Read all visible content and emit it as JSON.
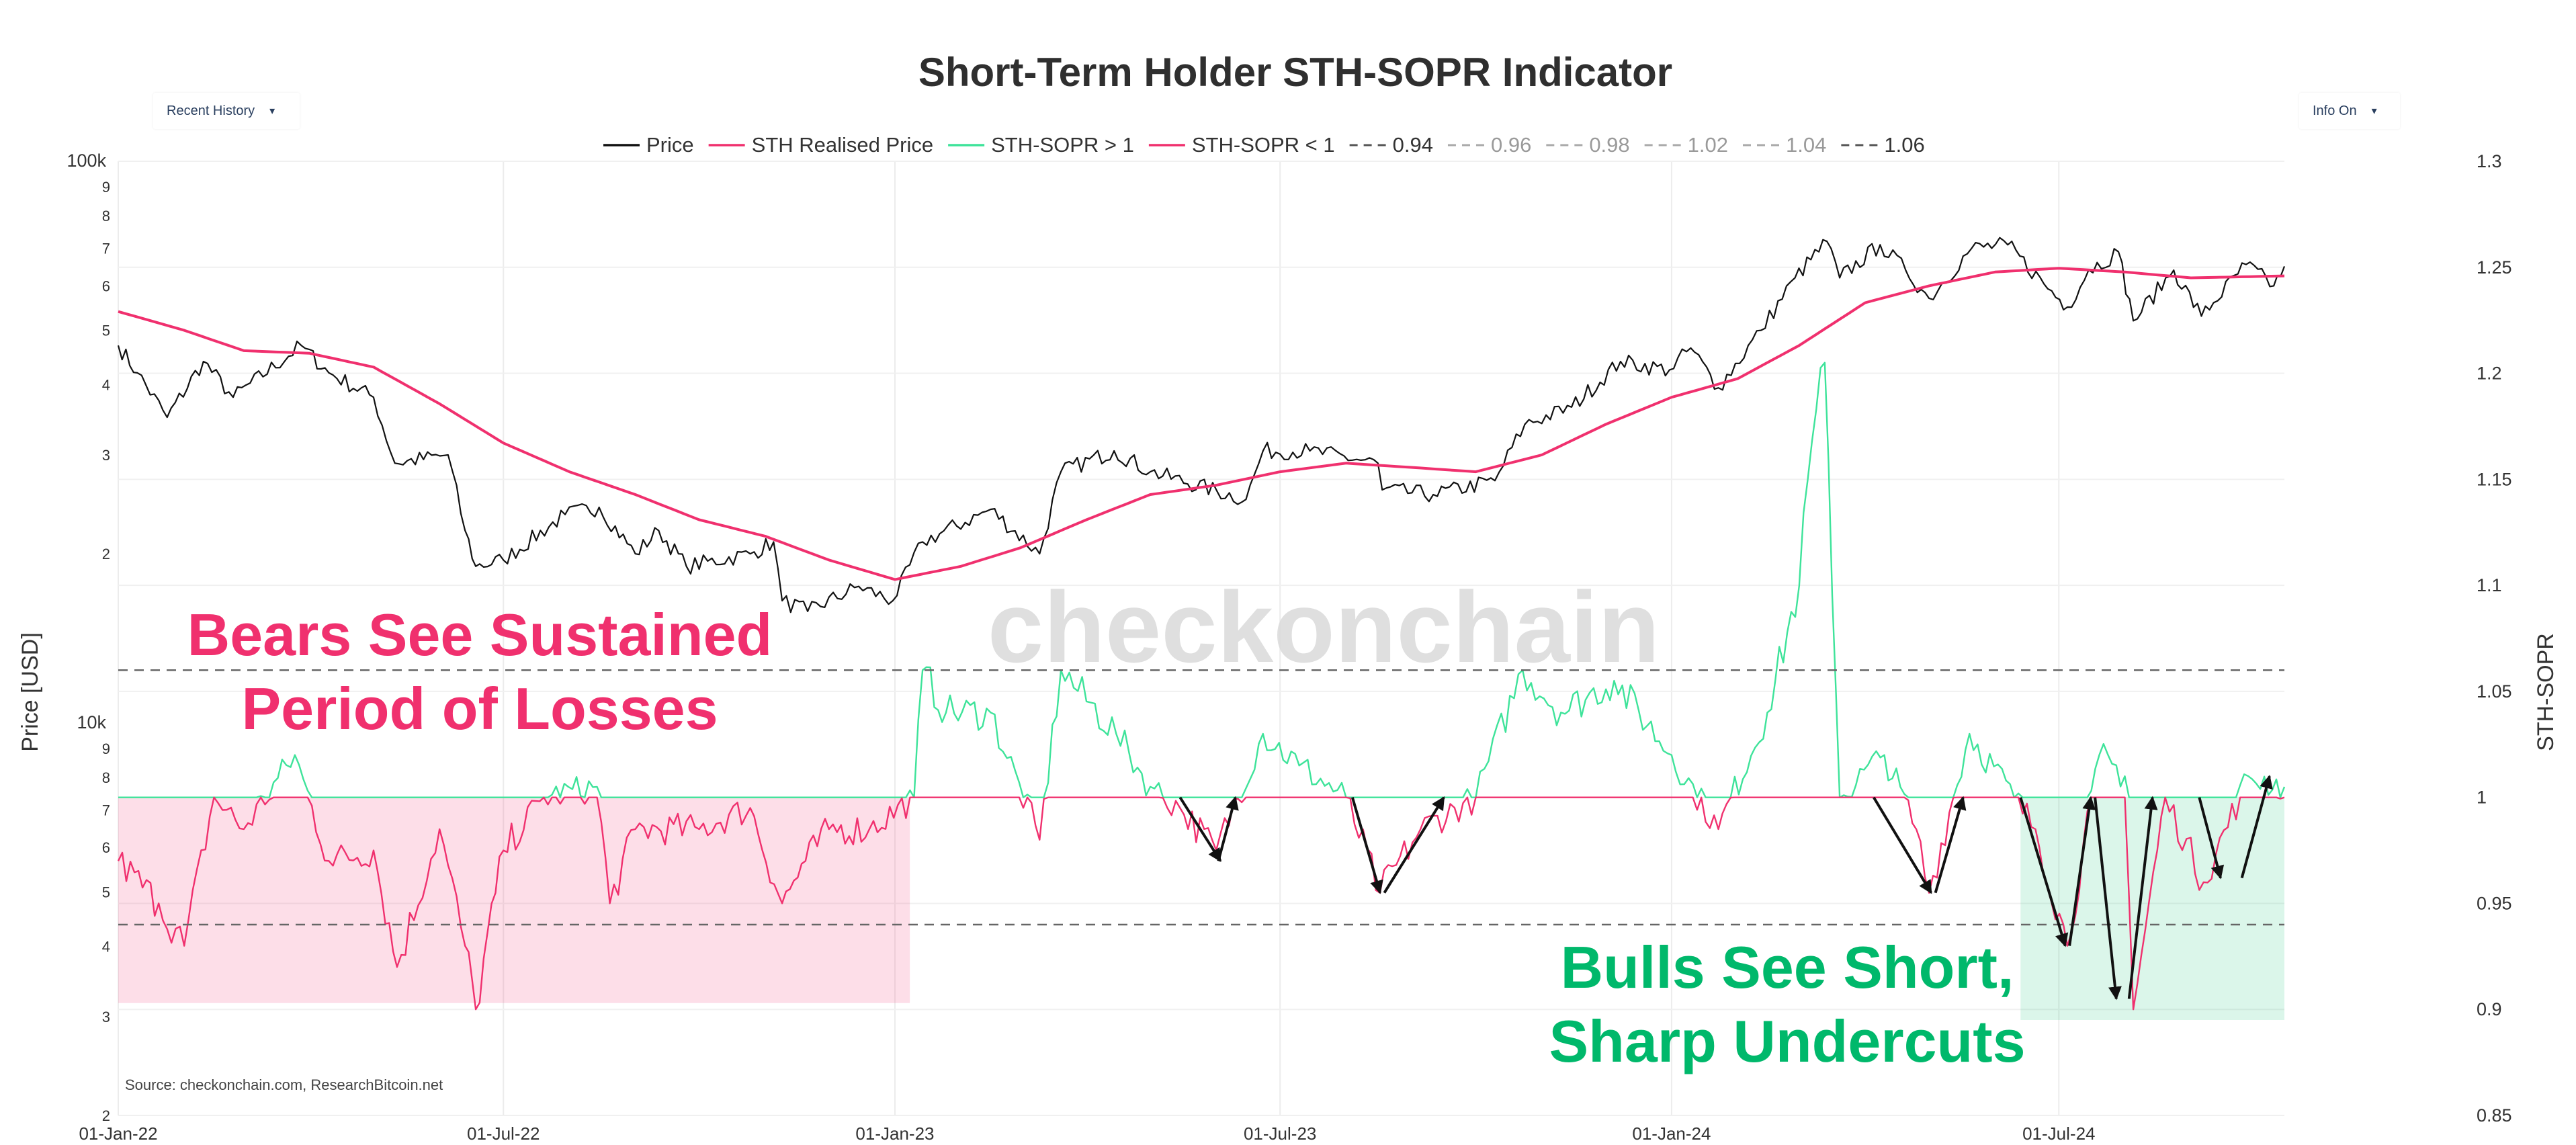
{
  "controls": {
    "left_dropdown": {
      "label": "Recent History",
      "caret": "▾"
    },
    "right_dropdown": {
      "label": "Info On",
      "caret": "▾"
    }
  },
  "chart_data": {
    "type": "line",
    "title": "Short-Term Holder STH-SOPR Indicator",
    "watermark": "checkonchain",
    "source": "Source: checkonchain.com, ResearchBitcoin.net",
    "x_axis": {
      "range": [
        "2022-01-01",
        "2024-10-15"
      ],
      "tick_dates": [
        "2022-01-01",
        "2022-07-01",
        "2023-01-01",
        "2023-07-01",
        "2024-01-01",
        "2024-07-01"
      ],
      "tick_labels": [
        "01-Jan-22",
        "01-Jul-22",
        "01-Jan-23",
        "01-Jul-23",
        "01-Jan-24",
        "01-Jul-24"
      ]
    },
    "y_left": {
      "label": "Price [USD]",
      "scale": "log",
      "range": [
        2000,
        100000
      ],
      "ticks": [
        {
          "v": 2000,
          "t": "2"
        },
        {
          "v": 3000,
          "t": "3"
        },
        {
          "v": 4000,
          "t": "4"
        },
        {
          "v": 5000,
          "t": "5"
        },
        {
          "v": 6000,
          "t": "6"
        },
        {
          "v": 7000,
          "t": "7"
        },
        {
          "v": 8000,
          "t": "8"
        },
        {
          "v": 9000,
          "t": "9"
        },
        {
          "v": 10000,
          "t": "10k"
        },
        {
          "v": 20000,
          "t": "2"
        },
        {
          "v": 30000,
          "t": "3"
        },
        {
          "v": 40000,
          "t": "4"
        },
        {
          "v": 50000,
          "t": "5"
        },
        {
          "v": 60000,
          "t": "6"
        },
        {
          "v": 70000,
          "t": "7"
        },
        {
          "v": 80000,
          "t": "8"
        },
        {
          "v": 90000,
          "t": "9"
        },
        {
          "v": 100000,
          "t": "100k"
        }
      ]
    },
    "y_right": {
      "label": "STH-SOPR",
      "range": [
        0.85,
        1.3
      ],
      "ticks": [
        {
          "v": 0.85,
          "t": "0.85"
        },
        {
          "v": 0.9,
          "t": "0.9"
        },
        {
          "v": 0.95,
          "t": "0.95"
        },
        {
          "v": 1.0,
          "t": "1"
        },
        {
          "v": 1.05,
          "t": "1.05"
        },
        {
          "v": 1.1,
          "t": "1.1"
        },
        {
          "v": 1.15,
          "t": "1.15"
        },
        {
          "v": 1.2,
          "t": "1.2"
        },
        {
          "v": 1.25,
          "t": "1.25"
        },
        {
          "v": 1.3,
          "t": "1.3"
        }
      ]
    },
    "legend": [
      {
        "name": "Price",
        "type": "line",
        "color": "#111111"
      },
      {
        "name": "STH Realised Price",
        "type": "line",
        "color": "#f0306e"
      },
      {
        "name": "STH-SOPR > 1",
        "type": "line",
        "color": "#3ee39a"
      },
      {
        "name": "STH-SOPR < 1",
        "type": "line",
        "color": "#f0306e"
      },
      {
        "name": "0.94",
        "type": "dash",
        "color": "#555555"
      },
      {
        "name": "0.96",
        "type": "dash",
        "color": "#aaaaaa"
      },
      {
        "name": "0.98",
        "type": "dash",
        "color": "#aaaaaa"
      },
      {
        "name": "1.02",
        "type": "dash",
        "color": "#aaaaaa"
      },
      {
        "name": "1.04",
        "type": "dash",
        "color": "#aaaaaa"
      },
      {
        "name": "1.06",
        "type": "dash",
        "color": "#555555"
      }
    ],
    "reference_lines": [
      {
        "name": "1.06",
        "value": 1.06,
        "color": "#666666"
      },
      {
        "name": "0.94",
        "value": 0.94,
        "color": "#666666"
      }
    ],
    "series": [
      {
        "name": "Price",
        "axis": "left",
        "color": "#111111",
        "noise": 0.035,
        "points": [
          [
            "2022-01-01",
            47000
          ],
          [
            "2022-01-10",
            42000
          ],
          [
            "2022-01-24",
            35000
          ],
          [
            "2022-02-10",
            44000
          ],
          [
            "2022-02-24",
            38000
          ],
          [
            "2022-03-28",
            47000
          ],
          [
            "2022-04-10",
            42000
          ],
          [
            "2022-05-01",
            38000
          ],
          [
            "2022-05-11",
            29000
          ],
          [
            "2022-06-05",
            30000
          ],
          [
            "2022-06-13",
            22000
          ],
          [
            "2022-06-18",
            19000
          ],
          [
            "2022-07-01",
            19500
          ],
          [
            "2022-07-30",
            23500
          ],
          [
            "2022-08-15",
            24200
          ],
          [
            "2022-09-01",
            20000
          ],
          [
            "2022-09-12",
            22000
          ],
          [
            "2022-09-25",
            19000
          ],
          [
            "2022-10-25",
            20000
          ],
          [
            "2022-11-05",
            21000
          ],
          [
            "2022-11-09",
            16500
          ],
          [
            "2022-11-21",
            15800
          ],
          [
            "2022-12-15",
            17500
          ],
          [
            "2022-12-31",
            16500
          ],
          [
            "2023-01-14",
            21000
          ],
          [
            "2023-02-15",
            24000
          ],
          [
            "2023-03-10",
            20000
          ],
          [
            "2023-03-20",
            28000
          ],
          [
            "2023-04-14",
            30500
          ],
          [
            "2023-05-01",
            28000
          ],
          [
            "2023-06-15",
            25000
          ],
          [
            "2023-06-23",
            30500
          ],
          [
            "2023-07-15",
            30500
          ],
          [
            "2023-08-16",
            29000
          ],
          [
            "2023-08-18",
            26000
          ],
          [
            "2023-09-11",
            25500
          ],
          [
            "2023-10-10",
            27000
          ],
          [
            "2023-10-24",
            34000
          ],
          [
            "2023-11-15",
            36500
          ],
          [
            "2023-12-08",
            44000
          ],
          [
            "2023-12-31",
            42500
          ],
          [
            "2024-01-10",
            46500
          ],
          [
            "2024-01-23",
            39500
          ],
          [
            "2024-02-12",
            50000
          ],
          [
            "2024-02-28",
            62000
          ],
          [
            "2024-03-14",
            72000
          ],
          [
            "2024-03-20",
            62000
          ],
          [
            "2024-04-08",
            71000
          ],
          [
            "2024-04-20",
            64000
          ],
          [
            "2024-05-01",
            57000
          ],
          [
            "2024-05-21",
            70000
          ],
          [
            "2024-06-07",
            71000
          ],
          [
            "2024-06-24",
            60500
          ],
          [
            "2024-07-05",
            55000
          ],
          [
            "2024-07-15",
            64000
          ],
          [
            "2024-07-29",
            69000
          ],
          [
            "2024-08-05",
            52000
          ],
          [
            "2024-08-24",
            64000
          ],
          [
            "2024-09-06",
            53000
          ],
          [
            "2024-09-27",
            65500
          ],
          [
            "2024-10-10",
            60000
          ],
          [
            "2024-10-15",
            65000
          ]
        ]
      },
      {
        "name": "STH Realised Price",
        "axis": "left",
        "color": "#f0306e",
        "noise": 0,
        "points": [
          [
            "2022-01-01",
            54000
          ],
          [
            "2022-02-01",
            50000
          ],
          [
            "2022-03-01",
            46000
          ],
          [
            "2022-04-01",
            45500
          ],
          [
            "2022-05-01",
            43000
          ],
          [
            "2022-06-01",
            37000
          ],
          [
            "2022-07-01",
            31500
          ],
          [
            "2022-08-01",
            28000
          ],
          [
            "2022-09-01",
            25500
          ],
          [
            "2022-10-01",
            23000
          ],
          [
            "2022-11-01",
            21500
          ],
          [
            "2022-12-01",
            19500
          ],
          [
            "2023-01-01",
            18000
          ],
          [
            "2023-02-01",
            19000
          ],
          [
            "2023-03-01",
            20500
          ],
          [
            "2023-04-01",
            23000
          ],
          [
            "2023-05-01",
            25500
          ],
          [
            "2023-06-01",
            26500
          ],
          [
            "2023-07-01",
            28000
          ],
          [
            "2023-08-01",
            29000
          ],
          [
            "2023-09-01",
            28500
          ],
          [
            "2023-10-01",
            28000
          ],
          [
            "2023-11-01",
            30000
          ],
          [
            "2023-12-01",
            34000
          ],
          [
            "2024-01-01",
            38000
          ],
          [
            "2024-02-01",
            41000
          ],
          [
            "2024-03-01",
            47000
          ],
          [
            "2024-04-01",
            56000
          ],
          [
            "2024-05-01",
            60000
          ],
          [
            "2024-06-01",
            63500
          ],
          [
            "2024-07-01",
            64500
          ],
          [
            "2024-08-01",
            63500
          ],
          [
            "2024-09-01",
            62000
          ],
          [
            "2024-10-15",
            62500
          ]
        ]
      },
      {
        "name": "STH-SOPR",
        "axis": "right",
        "color_above": "#3ee39a",
        "color_below": "#f0306e",
        "noise": 0.012,
        "points": [
          [
            "2022-01-01",
            0.97
          ],
          [
            "2022-01-20",
            0.95
          ],
          [
            "2022-02-01",
            0.93
          ],
          [
            "2022-02-15",
            1.0
          ],
          [
            "2022-03-01",
            0.985
          ],
          [
            "2022-03-25",
            1.02
          ],
          [
            "2022-04-10",
            0.97
          ],
          [
            "2022-05-01",
            0.975
          ],
          [
            "2022-05-12",
            0.92
          ],
          [
            "2022-06-01",
            0.985
          ],
          [
            "2022-06-13",
            0.93
          ],
          [
            "2022-06-18",
            0.9
          ],
          [
            "2022-07-01",
            0.975
          ],
          [
            "2022-07-20",
            1.0
          ],
          [
            "2022-08-14",
            1.005
          ],
          [
            "2022-08-20",
            0.95
          ],
          [
            "2022-09-01",
            0.985
          ],
          [
            "2022-10-01",
            0.985
          ],
          [
            "2022-10-25",
            0.995
          ],
          [
            "2022-11-09",
            0.95
          ],
          [
            "2022-11-20",
            0.97
          ],
          [
            "2022-12-01",
            0.985
          ],
          [
            "2022-12-20",
            0.985
          ],
          [
            "2023-01-10",
            1.0
          ],
          [
            "2023-01-14",
            1.06
          ],
          [
            "2023-01-25",
            1.04
          ],
          [
            "2023-02-15",
            1.04
          ],
          [
            "2023-03-10",
            0.98
          ],
          [
            "2023-03-20",
            1.06
          ],
          [
            "2023-04-15",
            1.03
          ],
          [
            "2023-05-01",
            1.005
          ],
          [
            "2023-05-15",
            0.995
          ],
          [
            "2023-06-01",
            0.975
          ],
          [
            "2023-06-23",
            1.03
          ],
          [
            "2023-07-10",
            1.015
          ],
          [
            "2023-08-01",
            1.0
          ],
          [
            "2023-08-17",
            0.955
          ],
          [
            "2023-09-05",
            0.985
          ],
          [
            "2023-10-01",
            1.0
          ],
          [
            "2023-10-23",
            1.06
          ],
          [
            "2023-11-10",
            1.04
          ],
          [
            "2023-12-05",
            1.055
          ],
          [
            "2024-01-01",
            1.02
          ],
          [
            "2024-01-23",
            0.985
          ],
          [
            "2024-02-15",
            1.04
          ],
          [
            "2024-03-01",
            1.1
          ],
          [
            "2024-03-05",
            1.15
          ],
          [
            "2024-03-13",
            1.205
          ],
          [
            "2024-03-20",
            1.0
          ],
          [
            "2024-04-10",
            1.02
          ],
          [
            "2024-04-25",
            0.985
          ],
          [
            "2024-05-01",
            0.955
          ],
          [
            "2024-05-20",
            1.03
          ],
          [
            "2024-06-10",
            1.0
          ],
          [
            "2024-06-20",
            0.985
          ],
          [
            "2024-07-05",
            0.93
          ],
          [
            "2024-07-20",
            1.02
          ],
          [
            "2024-08-01",
            1.01
          ],
          [
            "2024-08-05",
            0.9
          ],
          [
            "2024-08-20",
            1.0
          ],
          [
            "2024-09-07",
            0.96
          ],
          [
            "2024-09-28",
            1.01
          ],
          [
            "2024-10-15",
            1.005
          ]
        ]
      }
    ],
    "annotations": [
      {
        "lines": [
          "Bears See Sustained",
          "Period of Losses"
        ],
        "color": "#f0306e"
      },
      {
        "lines": [
          "Bulls See Short,",
          "Sharp Undercuts"
        ],
        "color": "#00b86b"
      }
    ],
    "shaded_regions": [
      {
        "name": "bear-losses-region",
        "x0": "2022-01-01",
        "x1": "2023-01-08",
        "y0": 0.903,
        "y1": 1.0,
        "color": "#f0306e"
      },
      {
        "name": "bull-undercut-region",
        "x0": "2024-06-13",
        "x1": "2024-10-15",
        "y0": 0.895,
        "y1": 1.0,
        "color": "#22c97f"
      }
    ],
    "arrows": [
      {
        "from": [
          "2023-05-15",
          1.0
        ],
        "to": [
          "2023-06-03",
          0.97
        ]
      },
      {
        "from": [
          "2023-06-02",
          0.97
        ],
        "to": [
          "2023-06-10",
          1.0
        ]
      },
      {
        "from": [
          "2023-08-04",
          1.0
        ],
        "to": [
          "2023-08-17",
          0.955
        ]
      },
      {
        "from": [
          "2023-08-19",
          0.955
        ],
        "to": [
          "2023-09-16",
          1.0
        ]
      },
      {
        "from": [
          "2024-04-05",
          1.0
        ],
        "to": [
          "2024-05-02",
          0.955
        ]
      },
      {
        "from": [
          "2024-05-04",
          0.955
        ],
        "to": [
          "2024-05-17",
          1.0
        ]
      },
      {
        "from": [
          "2024-06-13",
          1.0
        ],
        "to": [
          "2024-07-04",
          0.93
        ]
      },
      {
        "from": [
          "2024-07-06",
          0.93
        ],
        "to": [
          "2024-07-16",
          1.0
        ]
      },
      {
        "from": [
          "2024-07-18",
          1.0
        ],
        "to": [
          "2024-07-28",
          0.905
        ]
      },
      {
        "from": [
          "2024-08-03",
          0.905
        ],
        "to": [
          "2024-08-14",
          1.0
        ]
      },
      {
        "from": [
          "2024-09-05",
          1.0
        ],
        "to": [
          "2024-09-15",
          0.962
        ]
      },
      {
        "from": [
          "2024-09-25",
          0.962
        ],
        "to": [
          "2024-10-08",
          1.01
        ]
      }
    ]
  }
}
